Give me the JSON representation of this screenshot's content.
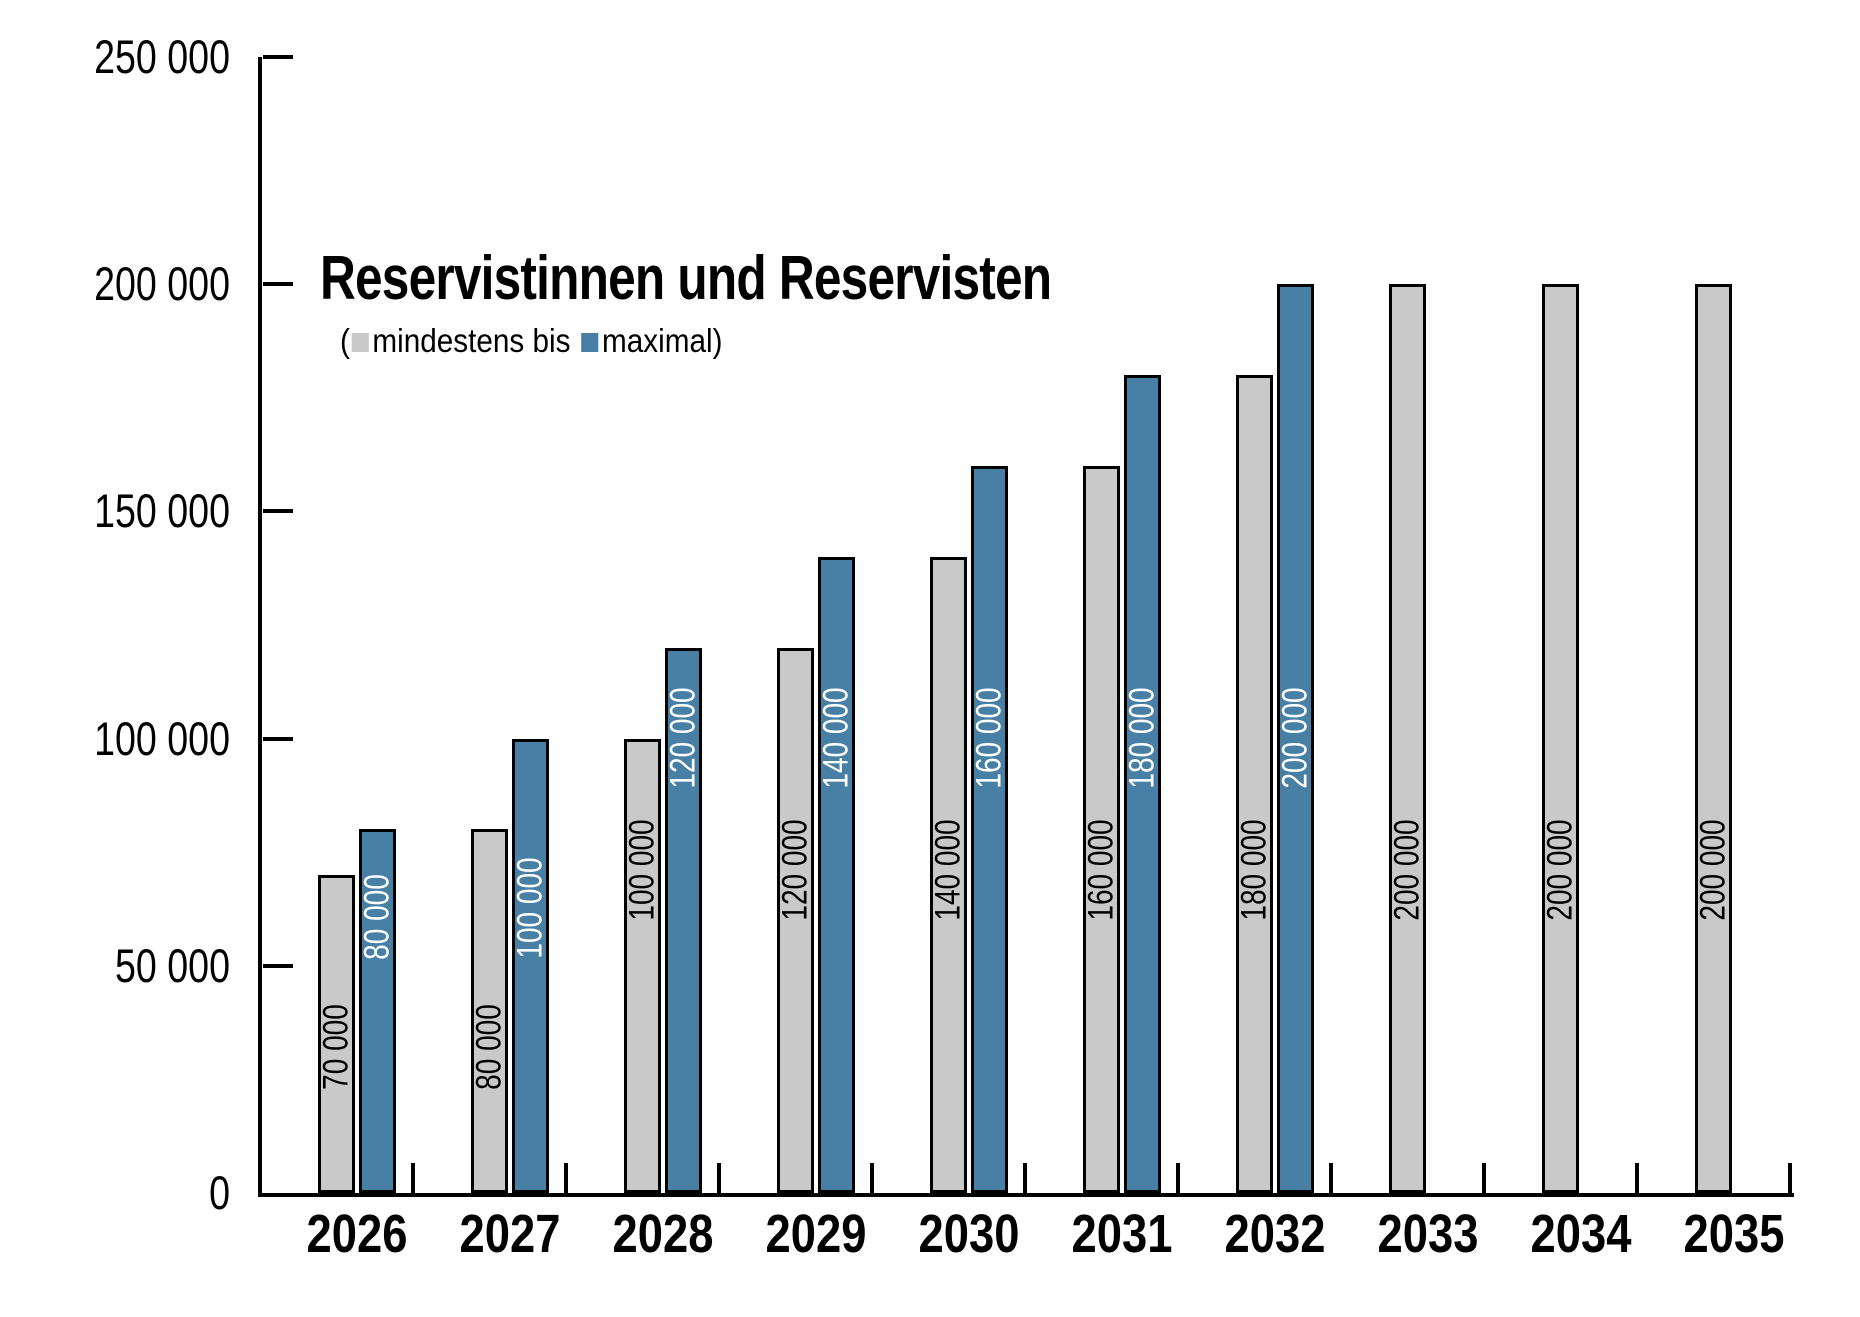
{
  "title": "Reservistinnen und Reservisten",
  "legend": {
    "prefix": "(",
    "series1_label": "mindestens bis",
    "series2_label": "maximal",
    "suffix": ")"
  },
  "chart_data": {
    "type": "bar",
    "title": "Reservistinnen und Reservisten",
    "categories": [
      "2026",
      "2027",
      "2028",
      "2029",
      "2030",
      "2031",
      "2032",
      "2033",
      "2034",
      "2035"
    ],
    "series": [
      {
        "name": "mindestens",
        "color": "#c9c9c9",
        "label_color": "#000000",
        "values": [
          70000,
          80000,
          100000,
          120000,
          140000,
          160000,
          180000,
          200000,
          200000,
          200000
        ],
        "value_labels": [
          "70 000",
          "80 000",
          "100 000",
          "120 000",
          "140 000",
          "160 000",
          "180 000",
          "200 000",
          "200 000",
          "200 000"
        ],
        "label_center_values": [
          31500,
          31500,
          70500,
          70500,
          70500,
          70500,
          70500,
          70500,
          70500,
          70500
        ]
      },
      {
        "name": "maximal",
        "color": "#477fa5",
        "label_color": "#ffffff",
        "values": [
          80000,
          100000,
          120000,
          140000,
          160000,
          180000,
          200000,
          null,
          null,
          null
        ],
        "value_labels": [
          "80 000",
          "100 000",
          "120 000",
          "140 000",
          "160 000",
          "180 000",
          "200 000",
          null,
          null,
          null
        ],
        "label_center_values": [
          60000,
          62000,
          99500,
          99500,
          99500,
          99500,
          99500,
          null,
          null,
          null
        ]
      }
    ],
    "ylim": [
      0,
      250000
    ],
    "yticks": [
      0,
      50000,
      100000,
      150000,
      200000,
      250000
    ],
    "ytick_labels": [
      "0",
      "50 000",
      "100 000",
      "150 000",
      "200 000",
      "250 000"
    ],
    "grid": false,
    "legend_position": "top-left-inside",
    "bar_outline_color": "#000000"
  }
}
